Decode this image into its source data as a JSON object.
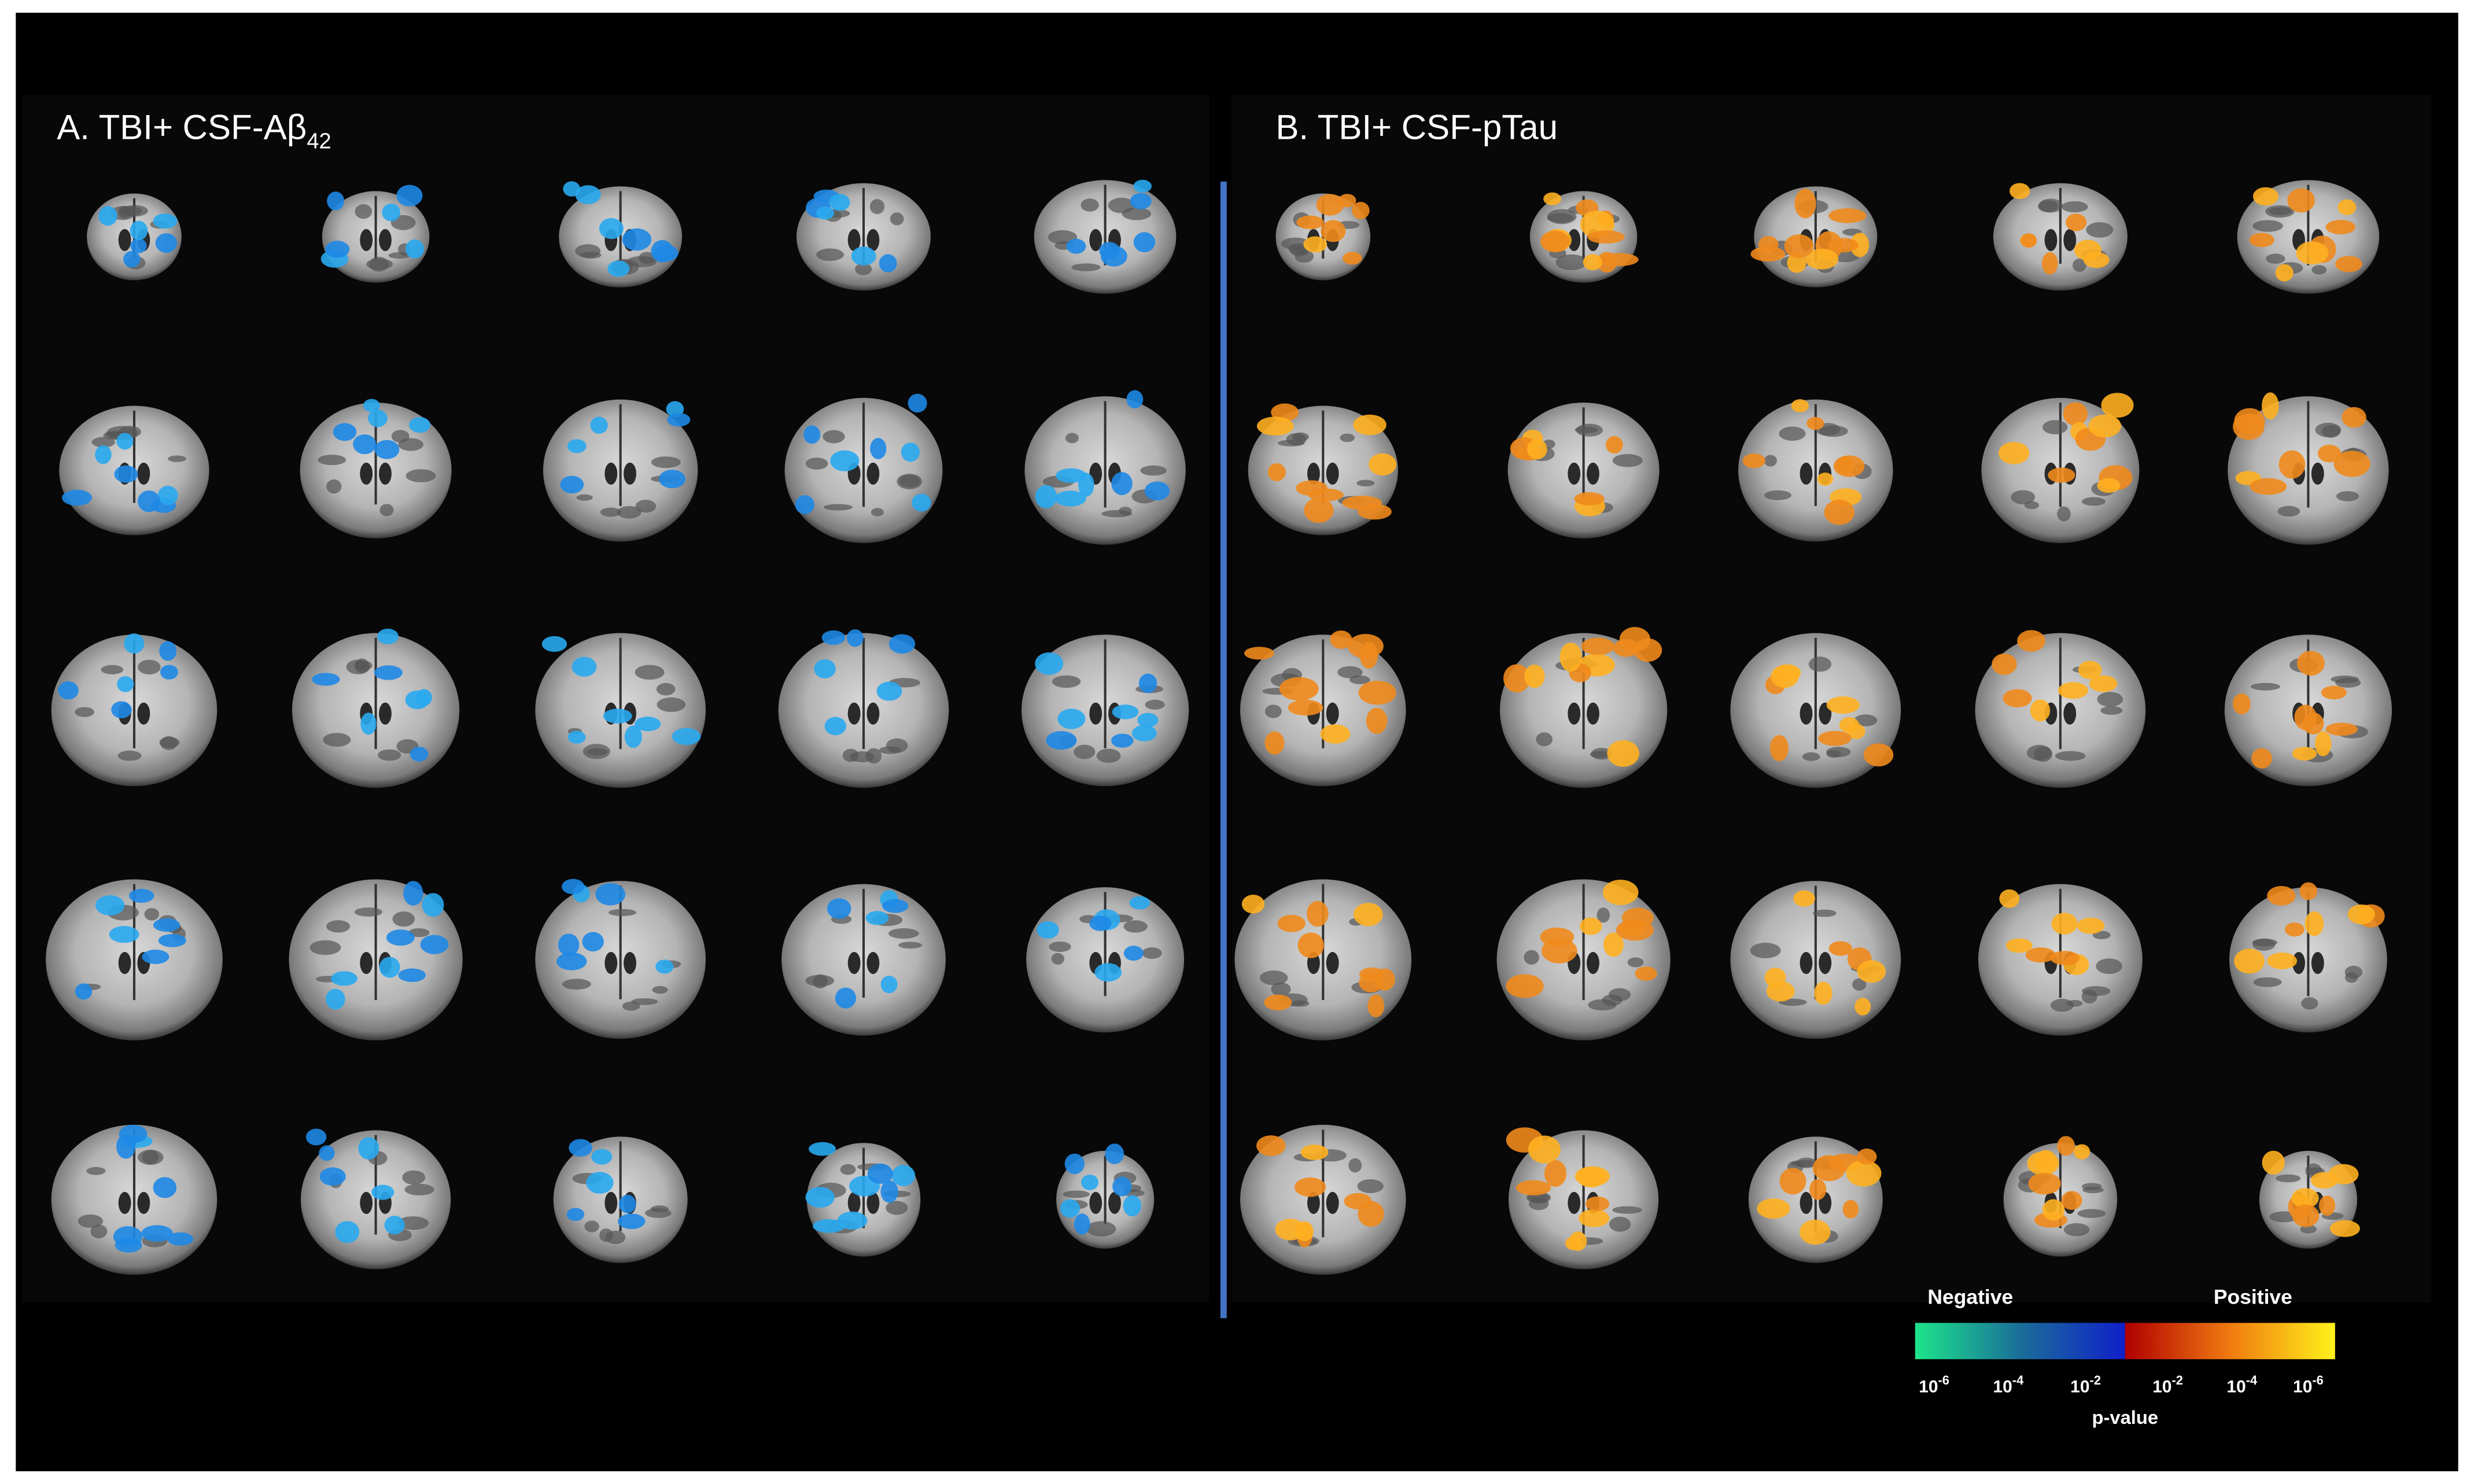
{
  "panels": [
    {
      "title": {
        "main": "A. TBI+ CSF-Aβ",
        "subscript": "42"
      }
    },
    {
      "title": {
        "main": "B. TBI+ CSF-pTau"
      }
    }
  ],
  "legend": {
    "negative_label": "Negative",
    "positive_label": "Positive",
    "axis_label": "p-value",
    "ticks": [
      {
        "base": "10",
        "exponent": "-6"
      },
      {
        "base": "10",
        "exponent": "-4"
      },
      {
        "base": "10",
        "exponent": "-2"
      },
      {
        "base": "10",
        "exponent": "-2"
      },
      {
        "base": "10",
        "exponent": "-4"
      },
      {
        "base": "10",
        "exponent": "-6"
      }
    ]
  }
}
